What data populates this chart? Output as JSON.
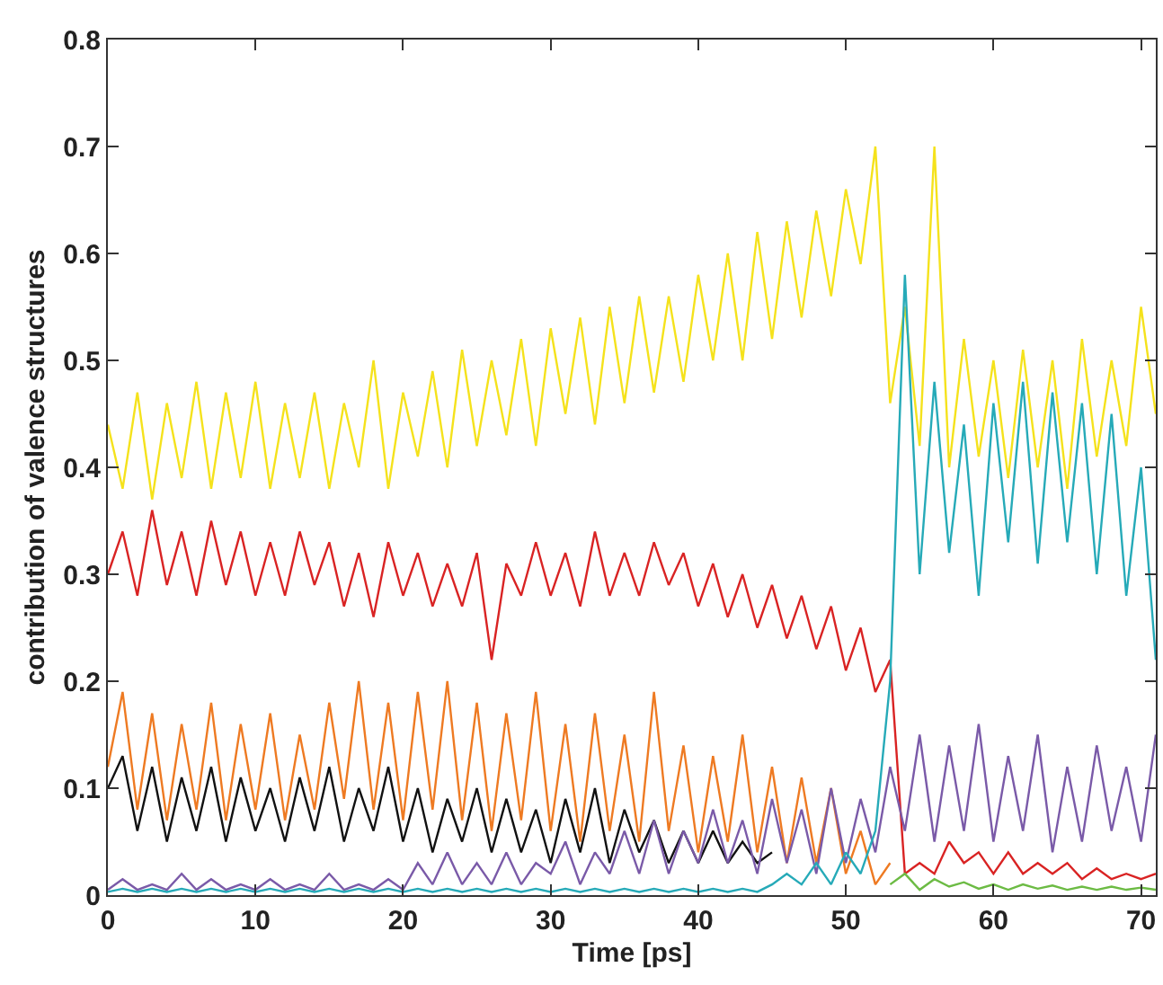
{
  "chart_data": {
    "type": "line",
    "xlabel": "Time [ps]",
    "ylabel": "contribution of valence structures",
    "x": [
      0,
      1,
      2,
      3,
      4,
      5,
      6,
      7,
      8,
      9,
      10,
      11,
      12,
      13,
      14,
      15,
      16,
      17,
      18,
      19,
      20,
      21,
      22,
      23,
      24,
      25,
      26,
      27,
      28,
      29,
      30,
      31,
      32,
      33,
      34,
      35,
      36,
      37,
      38,
      39,
      40,
      41,
      42,
      43,
      44,
      45,
      46,
      47,
      48,
      49,
      50,
      51,
      52,
      53,
      54,
      55,
      56,
      57,
      58,
      59,
      60,
      61,
      62,
      63,
      64,
      65,
      66,
      67,
      68,
      69,
      70,
      71
    ],
    "xlim": [
      0,
      71
    ],
    "xticks": [
      0,
      10,
      20,
      30,
      40,
      50,
      60,
      70
    ],
    "ylim": [
      0,
      0.8
    ],
    "yticks": [
      0,
      0.1,
      0.2,
      0.3,
      0.4,
      0.5,
      0.6,
      0.7,
      0.8
    ],
    "marker": "none",
    "line_style": "solid",
    "series": [
      {
        "color": "#f5e21c",
        "values": [
          0.44,
          0.38,
          0.47,
          0.37,
          0.46,
          0.39,
          0.48,
          0.38,
          0.47,
          0.39,
          0.48,
          0.38,
          0.46,
          0.39,
          0.47,
          0.38,
          0.46,
          0.4,
          0.5,
          0.38,
          0.47,
          0.41,
          0.49,
          0.4,
          0.51,
          0.42,
          0.5,
          0.43,
          0.52,
          0.42,
          0.53,
          0.45,
          0.54,
          0.44,
          0.55,
          0.46,
          0.56,
          0.47,
          0.56,
          0.48,
          0.58,
          0.5,
          0.6,
          0.5,
          0.62,
          0.52,
          0.63,
          0.54,
          0.64,
          0.56,
          0.66,
          0.59,
          0.7,
          0.46,
          0.55,
          0.42,
          0.7,
          0.4,
          0.52,
          0.41,
          0.5,
          0.39,
          0.51,
          0.4,
          0.5,
          0.38,
          0.52,
          0.41,
          0.5,
          0.42,
          0.55,
          0.45
        ]
      },
      {
        "color": "#d92323",
        "values": [
          0.3,
          0.34,
          0.28,
          0.36,
          0.29,
          0.34,
          0.28,
          0.35,
          0.29,
          0.34,
          0.28,
          0.33,
          0.28,
          0.34,
          0.29,
          0.33,
          0.27,
          0.32,
          0.26,
          0.33,
          0.28,
          0.32,
          0.27,
          0.31,
          0.27,
          0.32,
          0.22,
          0.31,
          0.28,
          0.33,
          0.28,
          0.32,
          0.27,
          0.34,
          0.28,
          0.32,
          0.28,
          0.33,
          0.29,
          0.32,
          0.27,
          0.31,
          0.26,
          0.3,
          0.25,
          0.29,
          0.24,
          0.28,
          0.23,
          0.27,
          0.21,
          0.25,
          0.19,
          0.22,
          0.02,
          0.03,
          0.02,
          0.05,
          0.03,
          0.04,
          0.02,
          0.04,
          0.02,
          0.03,
          0.02,
          0.03,
          0.015,
          0.025,
          0.015,
          0.02,
          0.015,
          0.02
        ]
      },
      {
        "color": "#ee7a22",
        "values": [
          0.12,
          0.19,
          0.08,
          0.17,
          0.07,
          0.16,
          0.08,
          0.18,
          0.07,
          0.16,
          0.08,
          0.17,
          0.07,
          0.15,
          0.08,
          0.18,
          0.09,
          0.2,
          0.08,
          0.18,
          0.07,
          0.19,
          0.08,
          0.2,
          0.07,
          0.18,
          0.06,
          0.17,
          0.07,
          0.19,
          0.06,
          0.16,
          0.05,
          0.17,
          0.06,
          0.15,
          0.05,
          0.19,
          0.06,
          0.14,
          0.04,
          0.13,
          0.05,
          0.15,
          0.04,
          0.12,
          0.03,
          0.11,
          0.03,
          0.1,
          0.02,
          0.06,
          0.01,
          0.03,
          null,
          null,
          null,
          null,
          null,
          null,
          null,
          null,
          null,
          null,
          null,
          null,
          null,
          null,
          null,
          null,
          null,
          null
        ]
      },
      {
        "color": "#111111",
        "values": [
          0.1,
          0.13,
          0.06,
          0.12,
          0.05,
          0.11,
          0.06,
          0.12,
          0.05,
          0.11,
          0.06,
          0.1,
          0.05,
          0.11,
          0.06,
          0.12,
          0.05,
          0.1,
          0.06,
          0.12,
          0.05,
          0.1,
          0.04,
          0.09,
          0.05,
          0.1,
          0.04,
          0.09,
          0.04,
          0.08,
          0.03,
          0.09,
          0.04,
          0.1,
          0.03,
          0.08,
          0.04,
          0.07,
          0.03,
          0.06,
          0.03,
          0.06,
          0.03,
          0.05,
          0.03,
          0.04,
          null,
          null,
          null,
          null,
          null,
          null,
          null,
          null,
          null,
          null,
          null,
          null,
          null,
          null,
          null,
          null,
          null,
          null,
          null,
          null,
          null,
          null,
          null,
          null,
          null,
          null
        ]
      },
      {
        "color": "#7a5aa8",
        "values": [
          0.005,
          0.015,
          0.005,
          0.01,
          0.005,
          0.02,
          0.005,
          0.015,
          0.005,
          0.01,
          0.005,
          0.015,
          0.005,
          0.01,
          0.005,
          0.02,
          0.005,
          0.01,
          0.005,
          0.015,
          0.005,
          0.03,
          0.01,
          0.04,
          0.01,
          0.03,
          0.01,
          0.04,
          0.01,
          0.03,
          0.02,
          0.05,
          0.01,
          0.04,
          0.02,
          0.06,
          0.02,
          0.07,
          0.02,
          0.06,
          0.03,
          0.08,
          0.03,
          0.07,
          0.02,
          0.09,
          0.03,
          0.08,
          0.02,
          0.1,
          0.03,
          0.09,
          0.04,
          0.12,
          0.06,
          0.15,
          0.05,
          0.14,
          0.06,
          0.16,
          0.05,
          0.13,
          0.06,
          0.15,
          0.04,
          0.12,
          0.05,
          0.14,
          0.06,
          0.12,
          0.05,
          0.15
        ]
      },
      {
        "color": "#26aab8",
        "values": [
          0.003,
          0.006,
          0.003,
          0.006,
          0.003,
          0.006,
          0.003,
          0.006,
          0.003,
          0.006,
          0.003,
          0.006,
          0.003,
          0.006,
          0.003,
          0.006,
          0.003,
          0.006,
          0.003,
          0.006,
          0.003,
          0.006,
          0.003,
          0.006,
          0.003,
          0.006,
          0.003,
          0.006,
          0.003,
          0.006,
          0.003,
          0.006,
          0.003,
          0.006,
          0.003,
          0.006,
          0.003,
          0.006,
          0.003,
          0.006,
          0.003,
          0.006,
          0.003,
          0.006,
          0.003,
          0.01,
          0.02,
          0.01,
          0.03,
          0.01,
          0.04,
          0.02,
          0.06,
          0.2,
          0.58,
          0.3,
          0.48,
          0.32,
          0.44,
          0.28,
          0.46,
          0.33,
          0.48,
          0.31,
          0.47,
          0.33,
          0.46,
          0.3,
          0.45,
          0.28,
          0.4,
          0.22
        ]
      },
      {
        "color": "#6cbb44",
        "values": [
          null,
          null,
          null,
          null,
          null,
          null,
          null,
          null,
          null,
          null,
          null,
          null,
          null,
          null,
          null,
          null,
          null,
          null,
          null,
          null,
          null,
          null,
          null,
          null,
          null,
          null,
          null,
          null,
          null,
          null,
          null,
          null,
          null,
          null,
          null,
          null,
          null,
          null,
          null,
          null,
          null,
          null,
          null,
          null,
          null,
          null,
          null,
          null,
          null,
          null,
          null,
          null,
          null,
          0.01,
          0.02,
          0.005,
          0.015,
          0.008,
          0.012,
          0.006,
          0.01,
          0.005,
          0.01,
          0.006,
          0.009,
          0.005,
          0.008,
          0.005,
          0.008,
          0.005,
          0.007,
          0.005
        ]
      }
    ]
  }
}
